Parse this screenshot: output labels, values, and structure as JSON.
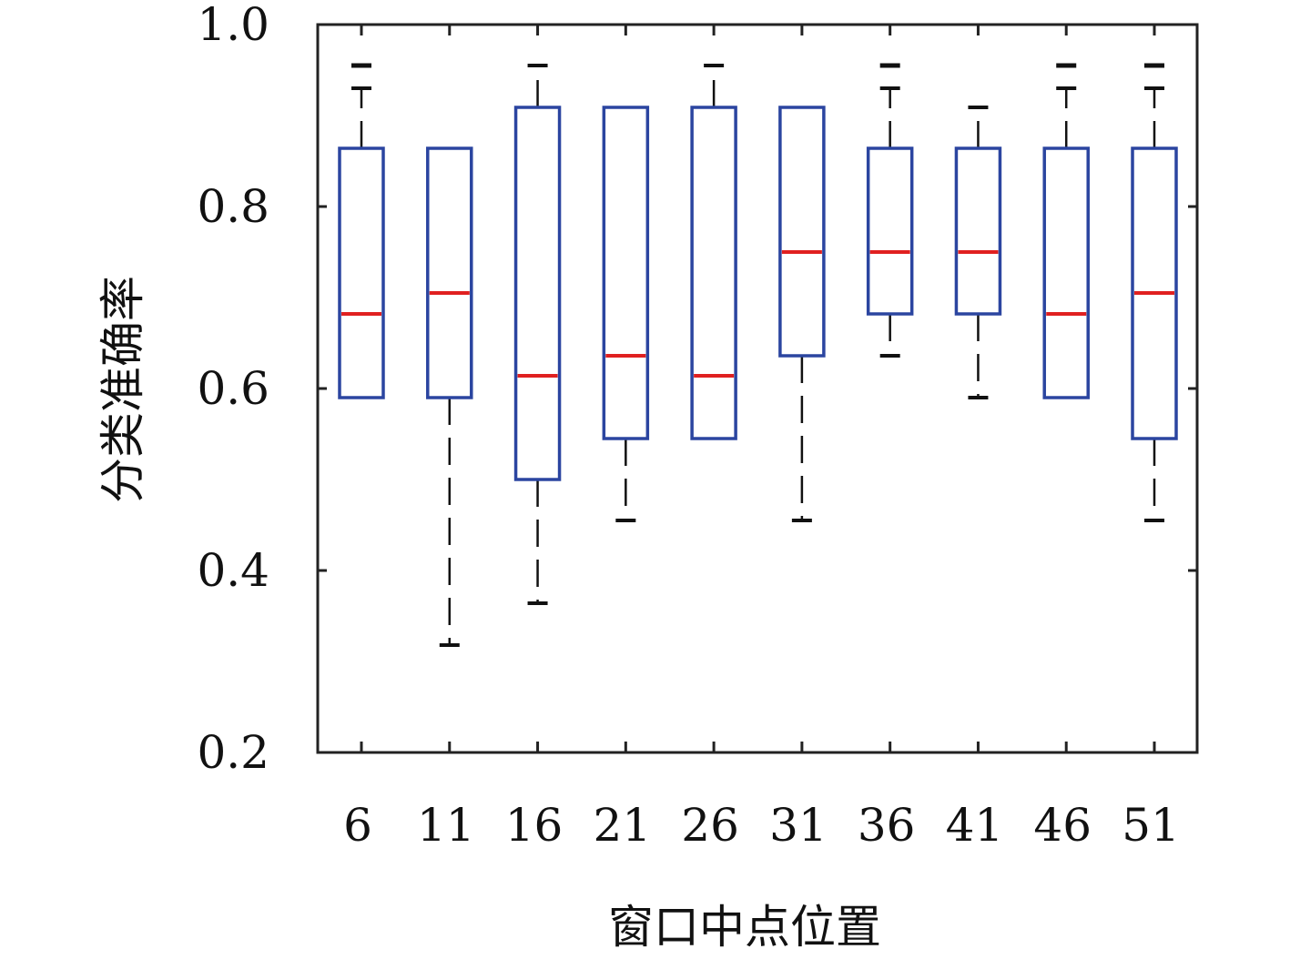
{
  "chart_data": {
    "type": "box",
    "xlabel": "窗口中点位置",
    "ylabel": "分类准确率",
    "ylim": [
      0.2,
      1.0
    ],
    "yticks": [
      "0.2",
      "0.4",
      "0.6",
      "0.8",
      "1.0"
    ],
    "grid": false,
    "categories": [
      "6",
      "11",
      "16",
      "21",
      "26",
      "31",
      "36",
      "41",
      "46",
      "51"
    ],
    "boxes": [
      {
        "category": "6",
        "whisker_low": 0.59,
        "q1": 0.59,
        "median": 0.682,
        "q3": 0.864,
        "whisker_high": 0.93,
        "outliers": [
          0.955
        ]
      },
      {
        "category": "11",
        "whisker_low": 0.318,
        "q1": 0.59,
        "median": 0.705,
        "q3": 0.864,
        "whisker_high": 0.864,
        "outliers": []
      },
      {
        "category": "16",
        "whisker_low": 0.364,
        "q1": 0.5,
        "median": 0.614,
        "q3": 0.909,
        "whisker_high": 0.955,
        "outliers": []
      },
      {
        "category": "21",
        "whisker_low": 0.455,
        "q1": 0.545,
        "median": 0.636,
        "q3": 0.909,
        "whisker_high": 0.909,
        "outliers": []
      },
      {
        "category": "26",
        "whisker_low": 0.545,
        "q1": 0.545,
        "median": 0.614,
        "q3": 0.909,
        "whisker_high": 0.955,
        "outliers": []
      },
      {
        "category": "31",
        "whisker_low": 0.455,
        "q1": 0.636,
        "median": 0.75,
        "q3": 0.909,
        "whisker_high": 0.909,
        "outliers": []
      },
      {
        "category": "36",
        "whisker_low": 0.636,
        "q1": 0.682,
        "median": 0.75,
        "q3": 0.864,
        "whisker_high": 0.93,
        "outliers": [
          0.955
        ]
      },
      {
        "category": "41",
        "whisker_low": 0.59,
        "q1": 0.682,
        "median": 0.75,
        "q3": 0.864,
        "whisker_high": 0.909,
        "outliers": []
      },
      {
        "category": "46",
        "whisker_low": 0.59,
        "q1": 0.59,
        "median": 0.682,
        "q3": 0.864,
        "whisker_high": 0.93,
        "outliers": [
          0.955
        ]
      },
      {
        "category": "51",
        "whisker_low": 0.455,
        "q1": 0.545,
        "median": 0.705,
        "q3": 0.864,
        "whisker_high": 0.93,
        "outliers": [
          0.955
        ]
      }
    ],
    "colors": {
      "box": "#2b45a0",
      "median": "#e02020",
      "whisker": "#111111",
      "frame": "#222222"
    }
  }
}
